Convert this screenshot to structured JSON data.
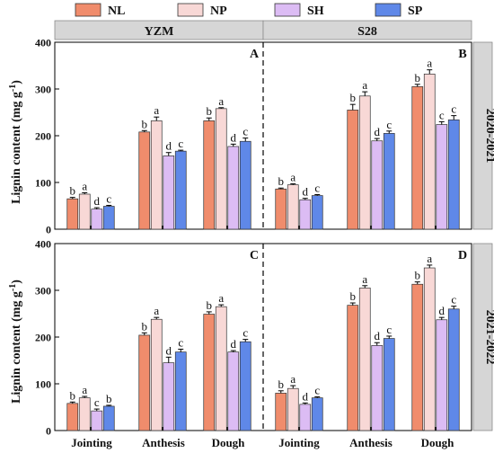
{
  "legend": [
    {
      "name": "NL",
      "color": "#f08c6c"
    },
    {
      "name": "NP",
      "color": "#f8d8d6"
    },
    {
      "name": "SH",
      "color": "#dcbcf4"
    },
    {
      "name": "SP",
      "color": "#5f88e8"
    }
  ],
  "columns": [
    "YZM",
    "S28"
  ],
  "rows": [
    "2020-2021",
    "2021-2022"
  ],
  "ylabel": "Lignin content (mg g",
  "ylabel_sup": "-1",
  "ylabel_close": ")",
  "categories": [
    "Jointing",
    "Anthesis",
    "Dough",
    "Jointing",
    "Anthesis",
    "Dough"
  ],
  "chart_data": {
    "type": "bar",
    "ylim": [
      0,
      400
    ],
    "yticks": [
      0,
      100,
      200,
      300,
      400
    ],
    "series_names": [
      "NL",
      "NP",
      "SH",
      "SP"
    ],
    "stage_labels": [
      "Jointing",
      "Anthesis",
      "Dough"
    ],
    "panels": [
      {
        "label": "A",
        "cultivar": "YZM",
        "season": "2020-2021",
        "groups": [
          {
            "stage": "Jointing",
            "values": [
              65,
              75,
              43,
              49
            ],
            "errors": [
              3,
              3,
              3,
              2
            ],
            "letters": [
              "b",
              "a",
              "d",
              "c"
            ]
          },
          {
            "stage": "Anthesis",
            "values": [
              208,
              232,
              157,
              167
            ],
            "errors": [
              3,
              8,
              7,
              2
            ],
            "letters": [
              "b",
              "a",
              "d",
              "c"
            ]
          },
          {
            "stage": "Dough",
            "values": [
              232,
              258,
              177,
              188
            ],
            "errors": [
              6,
              2,
              5,
              7
            ],
            "letters": [
              "b",
              "a",
              "d",
              "c"
            ]
          }
        ]
      },
      {
        "label": "B",
        "cultivar": "S28",
        "season": "2020-2021",
        "groups": [
          {
            "stage": "Jointing",
            "values": [
              86,
              95,
              63,
              72
            ],
            "errors": [
              2,
              2,
              3,
              2
            ],
            "letters": [
              "b",
              "a",
              "d",
              "c"
            ]
          },
          {
            "stage": "Anthesis",
            "values": [
              255,
              285,
              189,
              205
            ],
            "errors": [
              12,
              9,
              5,
              5
            ],
            "letters": [
              "b",
              "a",
              "d",
              "c"
            ]
          },
          {
            "stage": "Dough",
            "values": [
              305,
              332,
              224,
              234
            ],
            "errors": [
              5,
              9,
              6,
              9
            ],
            "letters": [
              "b",
              "a",
              "c",
              "c"
            ]
          }
        ]
      },
      {
        "label": "C",
        "cultivar": "YZM",
        "season": "2021-2022",
        "groups": [
          {
            "stage": "Jointing",
            "values": [
              58,
              70,
              42,
              52
            ],
            "errors": [
              3,
              3,
              4,
              2
            ],
            "letters": [
              "b",
              "a",
              "c",
              "b"
            ]
          },
          {
            "stage": "Anthesis",
            "values": [
              204,
              238,
              145,
              168
            ],
            "errors": [
              5,
              4,
              12,
              6
            ],
            "letters": [
              "b",
              "a",
              "d",
              "c"
            ]
          },
          {
            "stage": "Dough",
            "values": [
              249,
              265,
              168,
              190
            ],
            "errors": [
              5,
              4,
              3,
              5
            ],
            "letters": [
              "b",
              "a",
              "d",
              "c"
            ]
          }
        ]
      },
      {
        "label": "D",
        "cultivar": "S28",
        "season": "2021-2022",
        "groups": [
          {
            "stage": "Jointing",
            "values": [
              80,
              90,
              56,
              70
            ],
            "errors": [
              5,
              6,
              3,
              2
            ],
            "letters": [
              "b",
              "a",
              "d",
              "c"
            ]
          },
          {
            "stage": "Anthesis",
            "values": [
              268,
              305,
              182,
              197
            ],
            "errors": [
              5,
              5,
              6,
              5
            ],
            "letters": [
              "b",
              "a",
              "d",
              "c"
            ]
          },
          {
            "stage": "Dough",
            "values": [
              313,
              348,
              237,
              260
            ],
            "errors": [
              5,
              6,
              5,
              6
            ],
            "letters": [
              "b",
              "a",
              "d",
              "c"
            ]
          }
        ]
      }
    ]
  }
}
